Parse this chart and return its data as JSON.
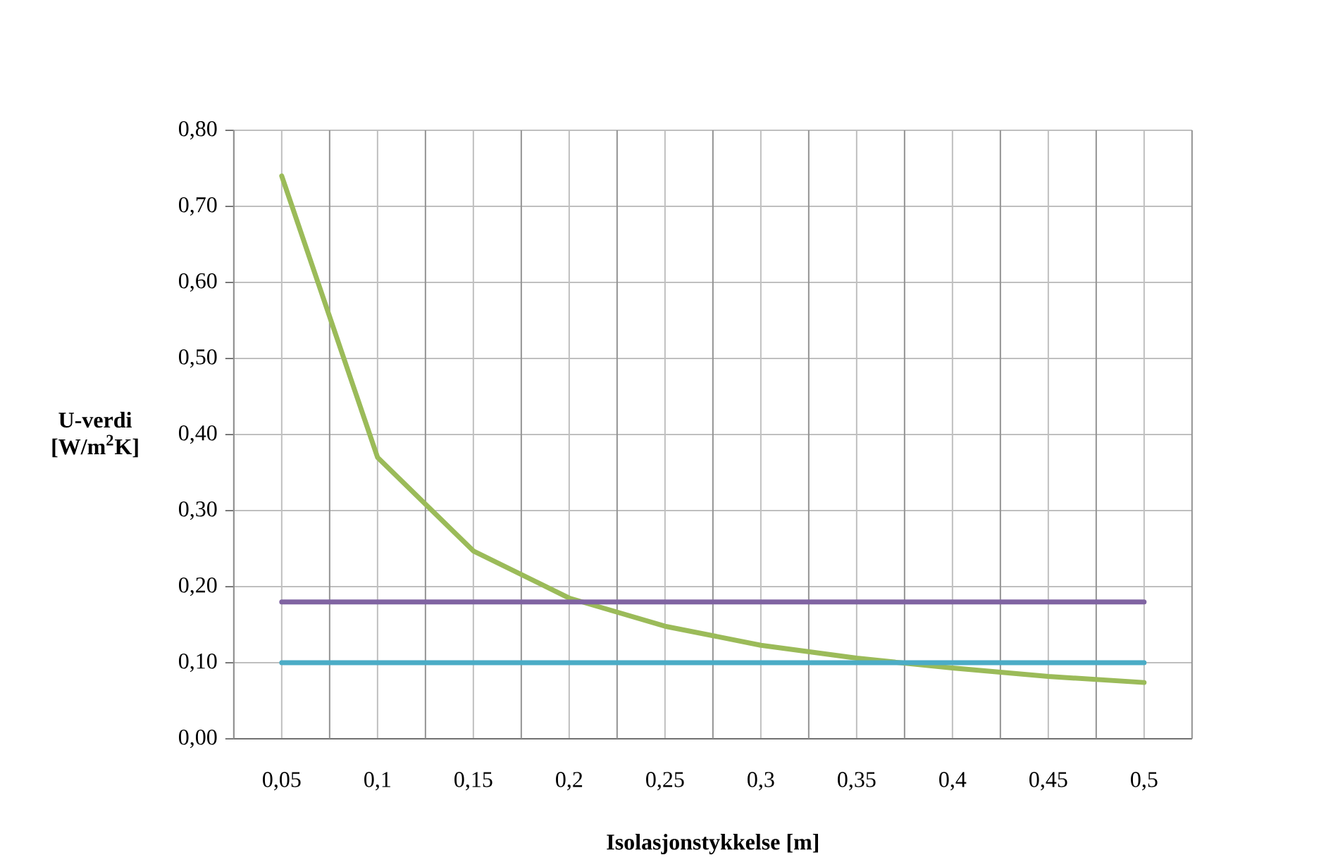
{
  "chart_data": {
    "type": "line",
    "xlabel": "Isolasjonstykkelse [m]",
    "ylabel": "U-verdi [W/m$^{2}$K]",
    "categories": [
      "0,05",
      "0,1",
      "0,15",
      "0,2",
      "0,25",
      "0,3",
      "0,35",
      "0,4",
      "0,45",
      "0,5"
    ],
    "series": [
      {
        "color": "#9bbb59",
        "values": [
          0.74,
          0.37,
          0.247,
          0.185,
          0.148,
          0.123,
          0.106,
          0.093,
          0.082,
          0.074
        ]
      },
      {
        "color": "#8064a2",
        "values": [
          0.18,
          0.18,
          0.18,
          0.18,
          0.18,
          0.18,
          0.18,
          0.18,
          0.18,
          0.18
        ]
      },
      {
        "color": "#4bacc6",
        "values": [
          0.1,
          0.1,
          0.1,
          0.1,
          0.1,
          0.1,
          0.1,
          0.1,
          0.1,
          0.1
        ]
      }
    ],
    "ylim": [
      0,
      0.8
    ],
    "yticks": [
      {
        "value": 0,
        "label": "0,00"
      },
      {
        "value": 0.1,
        "label": "0,10"
      },
      {
        "value": 0.2,
        "label": "0,20"
      },
      {
        "value": 0.3,
        "label": "0,30"
      },
      {
        "value": 0.4,
        "label": "0,40"
      },
      {
        "value": 0.5,
        "label": "0,50"
      },
      {
        "value": 0.6,
        "label": "0,60"
      },
      {
        "value": 0.7,
        "label": "0,70"
      },
      {
        "value": 0.8,
        "label": "0,80"
      }
    ],
    "grid": true,
    "legend": false,
    "marker": "none",
    "line_style": "solid"
  }
}
